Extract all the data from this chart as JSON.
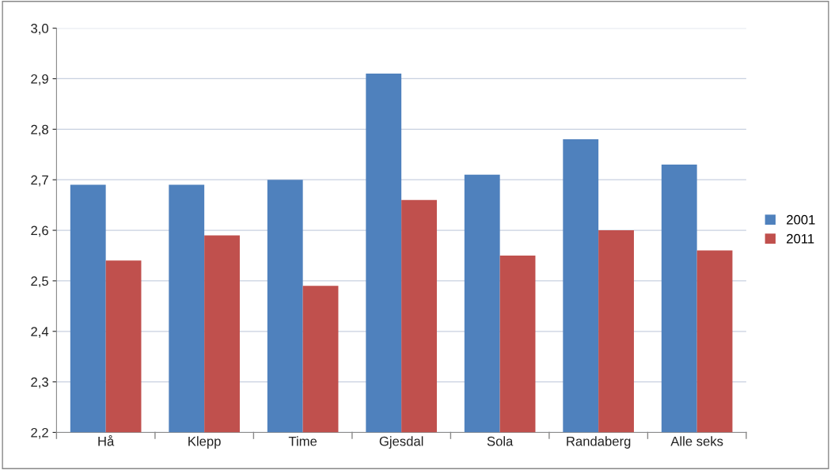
{
  "chart_data": {
    "type": "bar",
    "categories": [
      "Hå",
      "Klepp",
      "Time",
      "Gjesdal",
      "Sola",
      "Randaberg",
      "Alle seks"
    ],
    "series": [
      {
        "name": "2001",
        "color": "#4f81bd",
        "values": [
          2.69,
          2.69,
          2.7,
          2.91,
          2.71,
          2.78,
          2.73
        ]
      },
      {
        "name": "2011",
        "color": "#c0504d",
        "values": [
          2.54,
          2.59,
          2.49,
          2.66,
          2.55,
          2.6,
          2.56
        ]
      }
    ],
    "ylim": [
      2.2,
      3.0
    ],
    "yticks": [
      {
        "value": 2.2,
        "label": "2,2"
      },
      {
        "value": 2.3,
        "label": "2,3"
      },
      {
        "value": 2.4,
        "label": "2,4"
      },
      {
        "value": 2.5,
        "label": "2,5"
      },
      {
        "value": 2.6,
        "label": "2,6"
      },
      {
        "value": 2.7,
        "label": "2,7"
      },
      {
        "value": 2.8,
        "label": "2,8"
      },
      {
        "value": 2.9,
        "label": "2,9"
      },
      {
        "value": 3.0,
        "label": "3,0"
      }
    ],
    "grid": "y",
    "legend": "right"
  }
}
